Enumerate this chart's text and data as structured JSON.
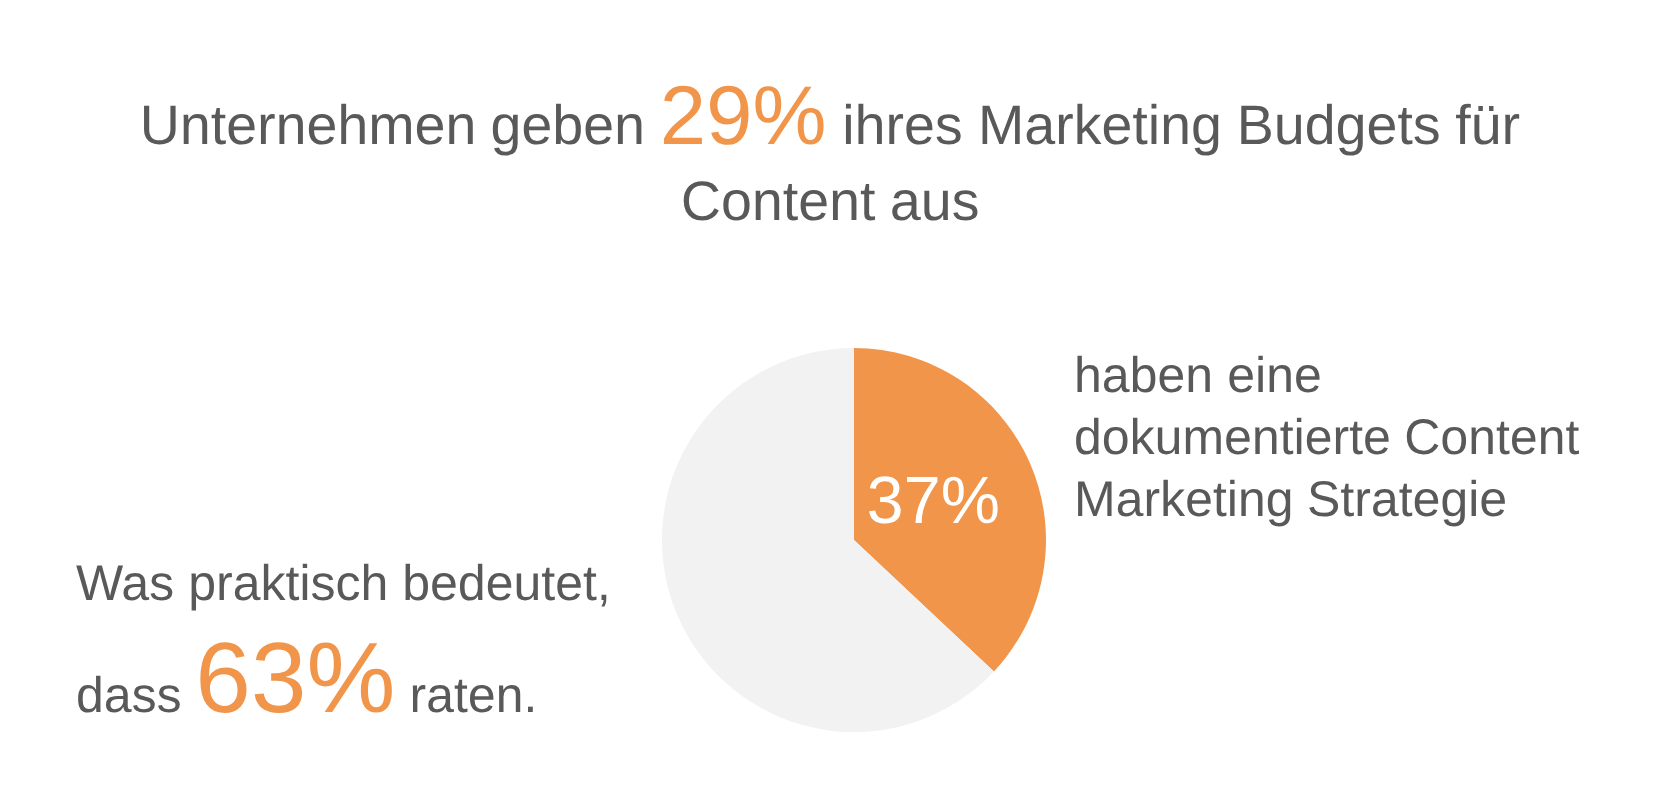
{
  "chart_data": {
    "type": "pie",
    "title": "Unternehmen geben 29% ihres Marketing Budgets für Content aus",
    "categories": [
      "haben eine dokumentierte Content Marketing Strategie",
      "Was praktisch bedeutet, dass 63% raten."
    ],
    "values": [
      37,
      63
    ],
    "colors": [
      "#f0954a",
      "#f2f2f2"
    ],
    "value_labels": [
      "37%",
      null
    ]
  }
}
